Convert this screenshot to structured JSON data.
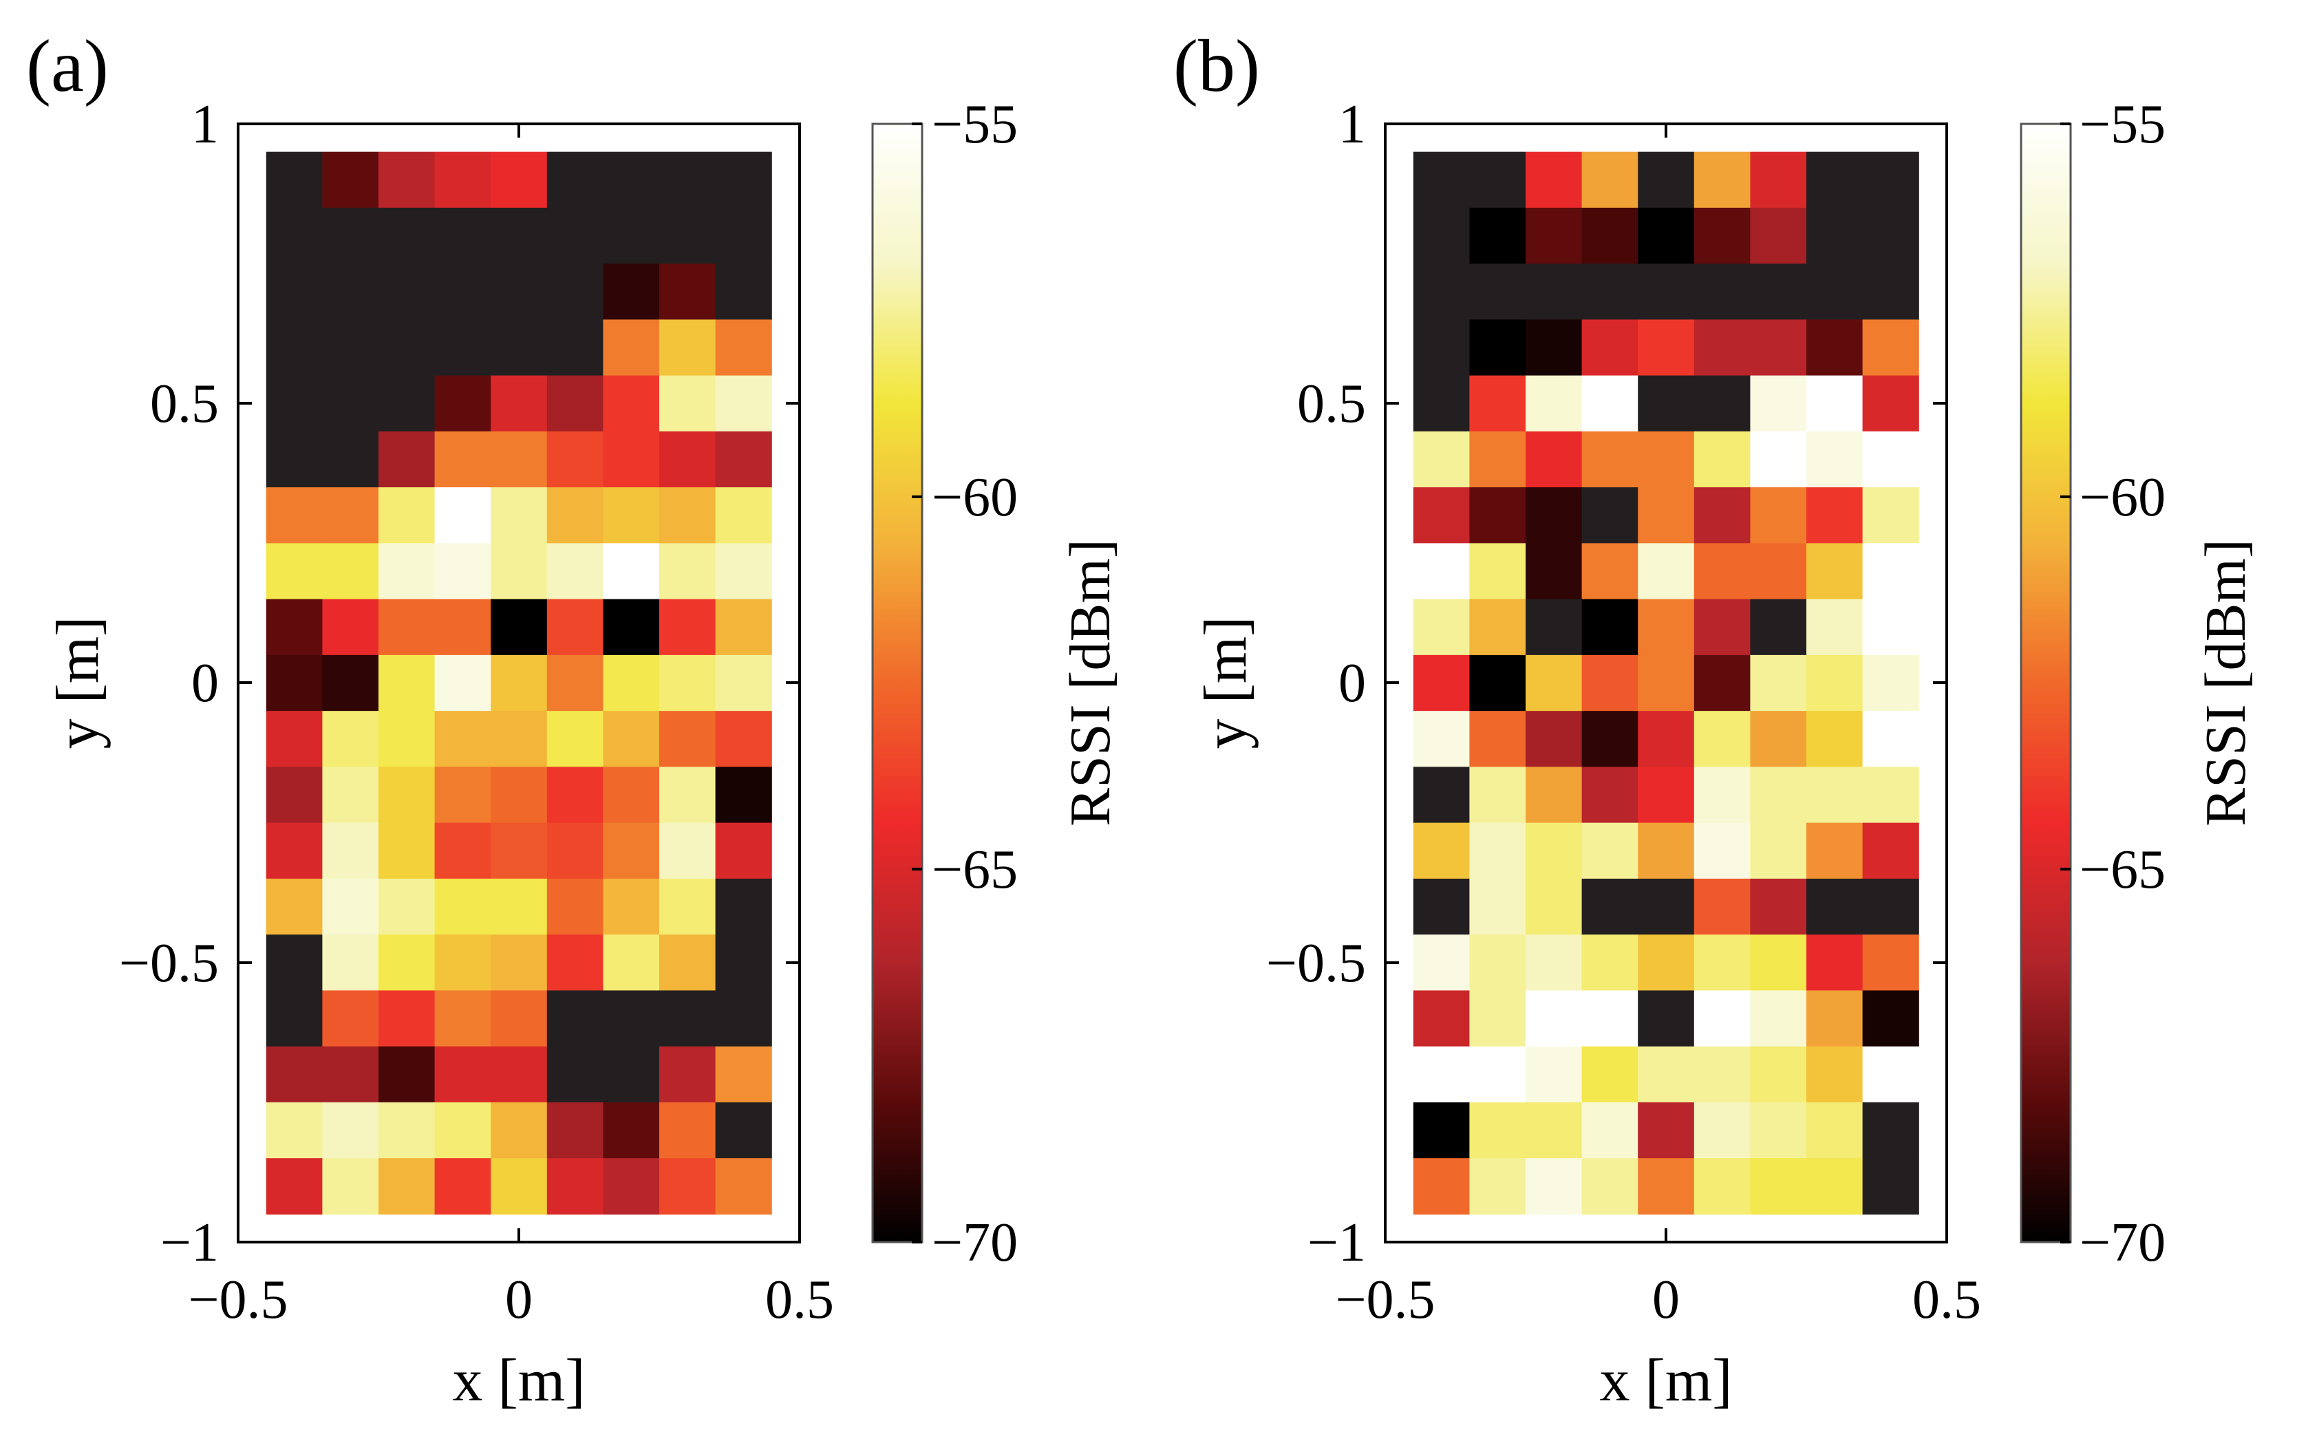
{
  "panels": [
    {
      "label": "(a)",
      "xlabel": "x [m]",
      "ylabel": "y [m]",
      "xlim": [
        -0.5,
        0.5
      ],
      "ylim": [
        -1,
        1
      ],
      "xticks": [
        -0.5,
        0,
        0.5
      ],
      "yticks": [
        -1,
        -0.5,
        0,
        0.5,
        1
      ],
      "xtick_labels": [
        "−0.5",
        "0",
        "0.5"
      ],
      "ytick_labels": [
        "−1",
        "−0.5",
        "0",
        "0.5",
        "1"
      ],
      "colorbar": {
        "label": "RSSI [dBm]",
        "range": [
          -70,
          -55
        ],
        "ticks": [
          -55,
          -60,
          -65,
          -70
        ],
        "tick_labels": [
          "−55",
          "−60",
          "−65",
          "−70"
        ]
      }
    },
    {
      "label": "(b)",
      "xlabel": "x [m]",
      "ylabel": "y [m]",
      "xlim": [
        -0.5,
        0.5
      ],
      "ylim": [
        -1,
        1
      ],
      "xticks": [
        -0.5,
        0,
        0.5
      ],
      "yticks": [
        -1,
        -0.5,
        0,
        0.5,
        1
      ],
      "xtick_labels": [
        "−0.5",
        "0",
        "0.5"
      ],
      "ytick_labels": [
        "−1",
        "−0.5",
        "0",
        "0.5",
        "1"
      ],
      "colorbar": {
        "label": "RSSI [dBm]",
        "range": [
          -70,
          -55
        ],
        "ticks": [
          -55,
          -60,
          -65,
          -70
        ],
        "tick_labels": [
          "−55",
          "−60",
          "−65",
          "−70"
        ]
      }
    }
  ],
  "colors": {
    "colormap": [
      "#000000",
      "#5a0a0a",
      "#b0242a",
      "#ee2a2a",
      "#f0692a",
      "#f3b23a",
      "#f2e63a",
      "#f6f6c8",
      "#ffffff"
    ],
    "no_data": "#231f20"
  },
  "chart_data": [
    {
      "type": "heatmap",
      "title": "(a)",
      "xlabel": "x [m]",
      "ylabel": "y [m]",
      "colorbar_label": "RSSI [dBm]",
      "value_range": [
        -70,
        -55
      ],
      "x_centers": [
        -0.4,
        -0.3,
        -0.2,
        -0.1,
        0,
        0.1,
        0.2,
        0.3,
        0.4
      ],
      "y_centers": [
        0.9,
        0.8,
        0.7,
        0.6,
        0.5,
        0.4,
        0.3,
        0.2,
        0.1,
        0,
        -0.1,
        -0.2,
        -0.3,
        -0.4,
        -0.5,
        -0.6,
        -0.7,
        -0.8,
        -0.9
      ],
      "cell_size": [
        0.1,
        0.1
      ],
      "values_dBm": [
        [
          null,
          -68,
          -66,
          -65,
          -64.5,
          null,
          null,
          null,
          null
        ],
        [
          null,
          null,
          null,
          null,
          null,
          null,
          null,
          null,
          null
        ],
        [
          null,
          null,
          null,
          null,
          null,
          null,
          -69,
          -68,
          null
        ],
        [
          null,
          null,
          null,
          null,
          null,
          null,
          -62,
          -60,
          -62
        ],
        [
          null,
          null,
          null,
          -68,
          -65,
          -66.5,
          -64,
          -57.5,
          -57
        ],
        [
          null,
          null,
          -66.5,
          -62,
          -62,
          -63.5,
          -64,
          -65,
          -66
        ],
        [
          -62,
          -62,
          -58,
          -55,
          -57.5,
          -60.5,
          -60,
          -60.5,
          -58
        ],
        [
          -58.5,
          -58.5,
          -56.5,
          -56,
          -57.5,
          -57,
          -55,
          -57.5,
          -57
        ],
        [
          -68,
          -64.5,
          -62.5,
          -62.5,
          -70,
          -63.5,
          -70,
          -64,
          -60.5
        ],
        [
          -68.5,
          -69,
          -58.5,
          -56,
          -60,
          -62,
          -58.5,
          -58,
          -57.5
        ],
        [
          -65,
          -58,
          -58.5,
          -60.5,
          -60.5,
          -58.5,
          -60.5,
          -62.5,
          -63.5
        ],
        [
          -66.5,
          -57.5,
          -59.5,
          -62,
          -62.5,
          -64,
          -62.5,
          -57.5,
          -69.5
        ],
        [
          -65,
          -57,
          -59.5,
          -63.5,
          -63,
          -63.5,
          -62,
          -57,
          -65
        ],
        [
          -60.5,
          -56.5,
          -57.5,
          -58.5,
          -58.5,
          -62.5,
          -60.5,
          -58,
          null
        ],
        [
          null,
          -57,
          -58.5,
          -60,
          -60.5,
          -64,
          -58,
          -60.5,
          null
        ],
        [
          null,
          -63,
          -64,
          -62,
          -62.5,
          null,
          null,
          null,
          null
        ],
        [
          -66.5,
          -66.5,
          -68.5,
          -65,
          -65,
          null,
          null,
          -66,
          -61.5
        ],
        [
          -57.5,
          -57,
          -57.5,
          -58,
          -60.5,
          -66.5,
          -68,
          -62.5,
          null
        ],
        [
          -65,
          -57.5,
          -60.5,
          -64,
          -59.5,
          -65,
          -66,
          -63.5,
          -62
        ]
      ]
    },
    {
      "type": "heatmap",
      "title": "(b)",
      "xlabel": "x [m]",
      "ylabel": "y [m]",
      "colorbar_label": "RSSI [dBm]",
      "value_range": [
        -70,
        -55
      ],
      "x_centers": [
        -0.4,
        -0.3,
        -0.2,
        -0.1,
        0,
        0.1,
        0.2,
        0.3,
        0.4
      ],
      "y_centers": [
        0.9,
        0.8,
        0.7,
        0.6,
        0.5,
        0.4,
        0.3,
        0.2,
        0.1,
        0,
        -0.1,
        -0.2,
        -0.3,
        -0.4,
        -0.5,
        -0.6,
        -0.7,
        -0.8,
        -0.9
      ],
      "cell_size": [
        0.1,
        0.1
      ],
      "values_dBm": [
        [
          null,
          null,
          -64.5,
          -61,
          null,
          -61,
          -65,
          null,
          null
        ],
        [
          null,
          -70,
          -68,
          -68.5,
          -70,
          -68,
          -66.5,
          null,
          null
        ],
        [
          null,
          null,
          null,
          null,
          null,
          null,
          null,
          null,
          null
        ],
        [
          null,
          -70,
          -69.5,
          -65,
          -64,
          -66,
          -66,
          -68,
          -62
        ],
        [
          null,
          -64,
          -56.5,
          -55,
          null,
          null,
          -56,
          -55,
          -65
        ],
        [
          -57.5,
          -62,
          -64.5,
          -62,
          -62,
          -58,
          -55,
          -56,
          -55
        ],
        [
          -65.5,
          -68,
          -69,
          null,
          -62,
          -66,
          -62,
          -64,
          -57.5
        ],
        [
          -55,
          -58,
          -69,
          -62,
          -56.5,
          -62.5,
          -62.5,
          -60,
          -55
        ],
        [
          -57.5,
          -60.5,
          null,
          -70,
          -62,
          -66,
          null,
          -57,
          -55
        ],
        [
          -64.5,
          -70,
          -60,
          -63,
          -62,
          -68,
          -57.5,
          -58,
          -56.5
        ],
        [
          -56,
          -62.5,
          -66.5,
          -69,
          -65,
          -58,
          -61,
          -59.5,
          -55
        ],
        [
          null,
          -57.5,
          -61,
          -66,
          -64.5,
          -56.5,
          -57.5,
          -57.5,
          -57.5
        ],
        [
          -60,
          -57,
          -58,
          -57.5,
          -61,
          -56,
          -57.5,
          -61.5,
          -65
        ],
        [
          null,
          -57,
          -58,
          null,
          null,
          -63,
          -66,
          null,
          null
        ],
        [
          -56,
          -57.5,
          -57,
          -58,
          -60,
          -58,
          -58.5,
          -64.5,
          -62.5
        ],
        [
          -65.5,
          -57.5,
          -55,
          -55,
          null,
          -55,
          -56.5,
          -61,
          -69.5
        ],
        [
          -55,
          -55,
          -56,
          -58.5,
          -57.5,
          -57.5,
          -58,
          -60,
          -55
        ],
        [
          -70,
          -58,
          -58,
          -56.5,
          -66,
          -57,
          -57.5,
          -58,
          null
        ],
        [
          -62.5,
          -57.5,
          -56,
          -57.5,
          -62,
          -58,
          -58.5,
          -58.5,
          null
        ]
      ]
    }
  ]
}
